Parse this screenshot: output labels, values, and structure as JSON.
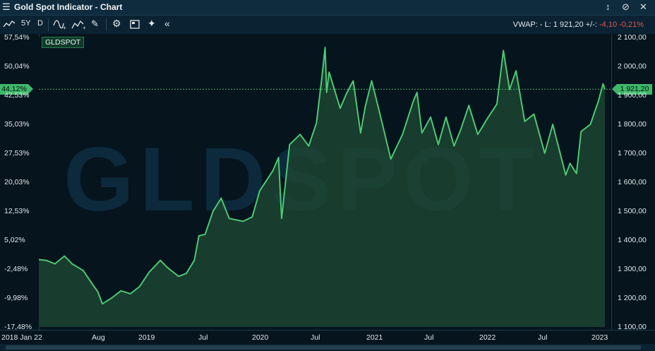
{
  "window": {
    "title": "Gold Spot Indicator - Chart",
    "menu_icon": "hamburger-icon"
  },
  "toolbar": {
    "period": "5Y",
    "interval": "D",
    "collapse": "«",
    "quote": {
      "vwap": "VWAP: -",
      "last": "L: 1 921,20",
      "change_label": "+/-:",
      "change": "-4,10",
      "change_pct": "-0,21%"
    }
  },
  "colors": {
    "line": "#4cc873",
    "fill": "#1f4a33",
    "negative": "#e0564b",
    "background": "#06141e"
  },
  "chart_data": {
    "type": "area",
    "title": "",
    "series_name": "GLDSPOT",
    "watermark": "GLDSPOT",
    "x_ticks": [
      "2018 Jan 22",
      "Aug",
      "2019",
      "Jul",
      "2020",
      "Jul",
      "2021",
      "Jul",
      "2022",
      "Jul",
      "2023"
    ],
    "y_left_ticks": [
      "57,54%",
      "50,04%",
      "42,53%",
      "35,03%",
      "27,53%",
      "20,03%",
      "12,53%",
      "5,02%",
      "-2,48%",
      "-9,98%",
      "-17,48%"
    ],
    "y_right_ticks": [
      "2 100,00",
      "2 000,00",
      "1 900,00",
      "1 800,00",
      "1 700,00",
      "1 600,00",
      "1 500,00",
      "1 400,00",
      "1 300,00",
      "1 200,00",
      "1 100,00"
    ],
    "ylim": [
      1100,
      2100
    ],
    "last_value_label": "1 921,20",
    "last_pct_label": "44,12%",
    "last_value": 1921.2,
    "series": [
      {
        "name": "GLDSPOT",
        "points": [
          [
            "2018-01-22",
            1333
          ],
          [
            "2018-02-15",
            1330
          ],
          [
            "2018-03-15",
            1318
          ],
          [
            "2018-04-15",
            1345
          ],
          [
            "2018-05-10",
            1318
          ],
          [
            "2018-06-15",
            1295
          ],
          [
            "2018-07-10",
            1255
          ],
          [
            "2018-08-01",
            1222
          ],
          [
            "2018-08-16",
            1180
          ],
          [
            "2018-09-15",
            1200
          ],
          [
            "2018-10-15",
            1225
          ],
          [
            "2018-11-15",
            1215
          ],
          [
            "2018-12-15",
            1240
          ],
          [
            "2019-01-15",
            1290
          ],
          [
            "2019-02-20",
            1330
          ],
          [
            "2019-03-15",
            1305
          ],
          [
            "2019-04-20",
            1275
          ],
          [
            "2019-05-15",
            1285
          ],
          [
            "2019-06-10",
            1330
          ],
          [
            "2019-06-25",
            1415
          ],
          [
            "2019-07-15",
            1420
          ],
          [
            "2019-08-10",
            1500
          ],
          [
            "2019-09-05",
            1545
          ],
          [
            "2019-10-01",
            1475
          ],
          [
            "2019-11-15",
            1465
          ],
          [
            "2019-12-15",
            1480
          ],
          [
            "2020-01-08",
            1570
          ],
          [
            "2020-02-20",
            1640
          ],
          [
            "2020-03-09",
            1685
          ],
          [
            "2020-03-19",
            1475
          ],
          [
            "2020-04-14",
            1730
          ],
          [
            "2020-05-18",
            1765
          ],
          [
            "2020-06-15",
            1725
          ],
          [
            "2020-07-10",
            1805
          ],
          [
            "2020-07-28",
            1965
          ],
          [
            "2020-08-07",
            2065
          ],
          [
            "2020-08-12",
            1910
          ],
          [
            "2020-08-20",
            1980
          ],
          [
            "2020-09-25",
            1855
          ],
          [
            "2020-10-15",
            1905
          ],
          [
            "2020-11-06",
            1950
          ],
          [
            "2020-11-30",
            1770
          ],
          [
            "2020-12-15",
            1860
          ],
          [
            "2021-01-05",
            1950
          ],
          [
            "2021-02-01",
            1835
          ],
          [
            "2021-03-08",
            1680
          ],
          [
            "2021-04-15",
            1765
          ],
          [
            "2021-05-20",
            1880
          ],
          [
            "2021-06-01",
            1910
          ],
          [
            "2021-06-17",
            1770
          ],
          [
            "2021-07-15",
            1825
          ],
          [
            "2021-08-09",
            1730
          ],
          [
            "2021-09-03",
            1825
          ],
          [
            "2021-09-29",
            1725
          ],
          [
            "2021-10-20",
            1780
          ],
          [
            "2021-11-16",
            1865
          ],
          [
            "2021-12-15",
            1765
          ],
          [
            "2022-01-15",
            1820
          ],
          [
            "2022-02-15",
            1870
          ],
          [
            "2022-03-08",
            2055
          ],
          [
            "2022-03-28",
            1920
          ],
          [
            "2022-04-18",
            1985
          ],
          [
            "2022-05-16",
            1810
          ],
          [
            "2022-06-15",
            1835
          ],
          [
            "2022-07-20",
            1700
          ],
          [
            "2022-08-15",
            1800
          ],
          [
            "2022-09-26",
            1625
          ],
          [
            "2022-10-10",
            1665
          ],
          [
            "2022-10-31",
            1630
          ],
          [
            "2022-11-15",
            1775
          ],
          [
            "2022-12-15",
            1800
          ],
          [
            "2023-01-10",
            1880
          ],
          [
            "2023-01-25",
            1940
          ],
          [
            "2023-01-31",
            1921.2
          ]
        ]
      }
    ]
  }
}
